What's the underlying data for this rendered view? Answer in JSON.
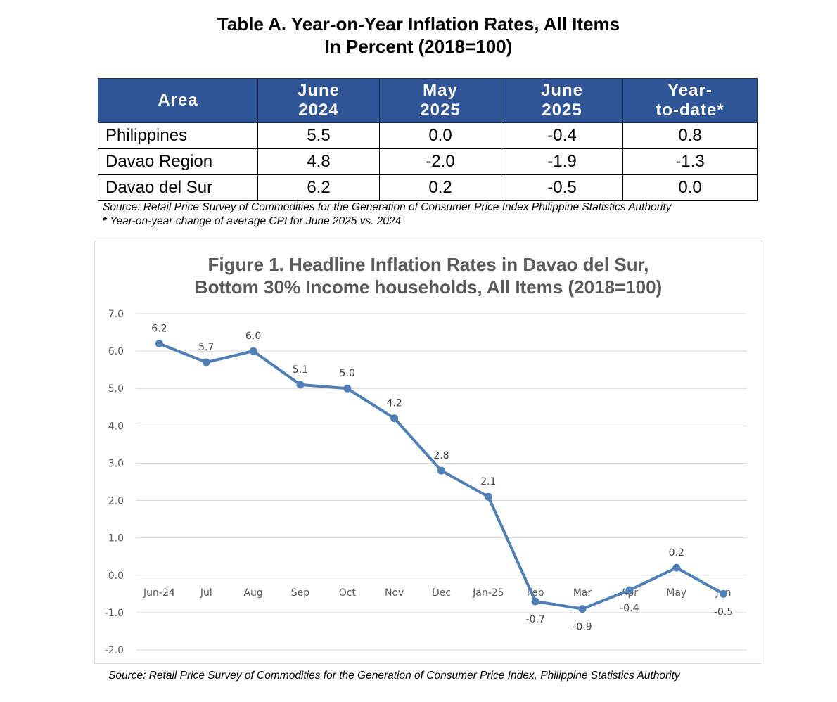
{
  "table": {
    "title_line1": "Table A. Year-on-Year Inflation Rates, All Items",
    "title_line2": "In Percent (2018=100)",
    "headers": [
      {
        "line1": "Area",
        "line2": ""
      },
      {
        "line1": "June",
        "line2": "2024"
      },
      {
        "line1": "May",
        "line2": "2025"
      },
      {
        "line1": "June",
        "line2": "2025"
      },
      {
        "line1": "Year-",
        "line2": "to-date*"
      }
    ],
    "rows": [
      {
        "area": "Philippines",
        "june_2024": "5.5",
        "may_2025": "0.0",
        "june_2025": "-0.4",
        "ytd": "0.8"
      },
      {
        "area": "Davao Region",
        "june_2024": "4.8",
        "may_2025": "-2.0",
        "june_2025": "-1.9",
        "ytd": "-1.3"
      },
      {
        "area": "Davao del Sur",
        "june_2024": "6.2",
        "may_2025": "0.2",
        "june_2025": "-0.5",
        "ytd": "0.0"
      }
    ],
    "header_color": "#2f5597",
    "source": "Source: Retail Price Survey of Commodities for the Generation of Consumer Price Index Philippine Statistics Authority",
    "footnote_marker": "*",
    "footnote": " Year-on-year change of average CPI for June 2025 vs. 2024"
  },
  "chart_data": {
    "type": "line",
    "title_line1": "Figure 1. Headline Inflation Rates in Davao del Sur,",
    "title_line2": "Bottom 30% Income households, All Items (2018=100)",
    "categories": [
      "Jun-24",
      "Jul",
      "Aug",
      "Sep",
      "Oct",
      "Nov",
      "Dec",
      "Jan-25",
      "Feb",
      "Mar",
      "Apr",
      "May",
      "Jun"
    ],
    "series": [
      {
        "values": [
          6.2,
          5.7,
          6.0,
          5.1,
          5.0,
          4.2,
          2.8,
          2.1,
          -0.7,
          -0.9,
          -0.4,
          0.2,
          -0.5
        ],
        "data_labels": [
          "6.2",
          "5.7",
          "6.0",
          "5.1",
          "5.0",
          "4.2",
          "2.8",
          "2.1",
          "-0.7",
          "-0.9",
          "-0.4",
          "0.2",
          "-0.5"
        ]
      }
    ],
    "label_position": [
      "above",
      "above",
      "above",
      "above",
      "above",
      "above",
      "above",
      "above",
      "below",
      "below",
      "below",
      "above",
      "below"
    ],
    "yticks": [
      "7.0",
      "6.0",
      "5.0",
      "4.0",
      "3.0",
      "2.0",
      "1.0",
      "0.0",
      "-1.0",
      "-2.0"
    ],
    "ylim": [
      -2,
      7
    ],
    "grid": true,
    "legend": "none",
    "line_color": "#4f7fb7",
    "source": "Source: Retail Price Survey of Commodities for the Generation of Consumer Price Index, Philippine Statistics Authority"
  }
}
